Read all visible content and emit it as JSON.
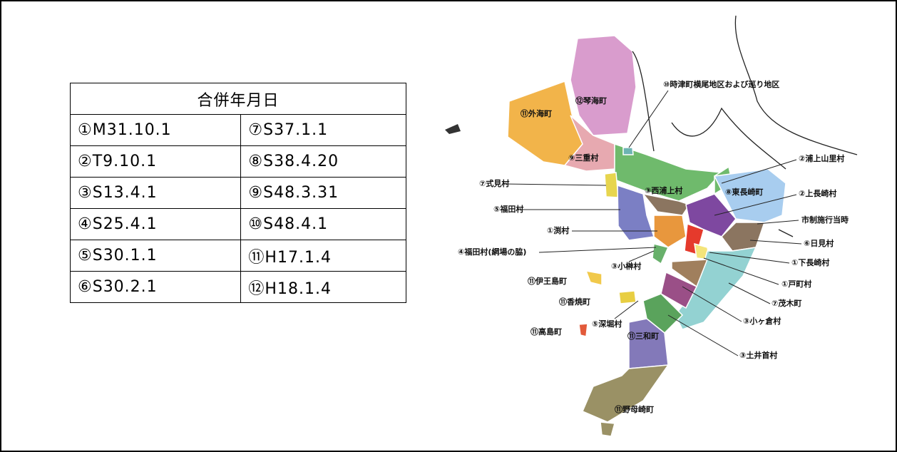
{
  "table": {
    "header": "合併年月日",
    "rows": [
      [
        "①M31.10.1",
        "⑦S37.1.1"
      ],
      [
        "②T9.10.1",
        "⑧S38.4.20"
      ],
      [
        "③S13.4.1",
        "⑨S48.3.31"
      ],
      [
        "④S25.4.1",
        "⑩S48.4.1"
      ],
      [
        "⑤S30.1.1",
        "⑪H17.1.4"
      ],
      [
        "⑥S30.2.1",
        "⑫H18.1.4"
      ]
    ]
  },
  "map": {
    "labels": [
      "⑩時津町横尾地区および巡り地区",
      "⑫琴海町",
      "⑪外海町",
      "⑨三重村",
      "②浦上山里村",
      "⑦式見村",
      "③西浦上村",
      "⑧東長崎町",
      "②上長崎村",
      "⑤福田村",
      "市制施行当時",
      "①渕村",
      "⑥日見村",
      "④福田村(網場の脇)",
      "①下長崎村",
      "③小榊村",
      "⑪伊王島町",
      "①戸町村",
      "⑪香焼町",
      "⑦茂木町",
      "⑤深堀村",
      "③小ヶ倉村",
      "⑪高島町",
      "⑪三和町",
      "③土井首村",
      "⑪野母崎町"
    ]
  }
}
